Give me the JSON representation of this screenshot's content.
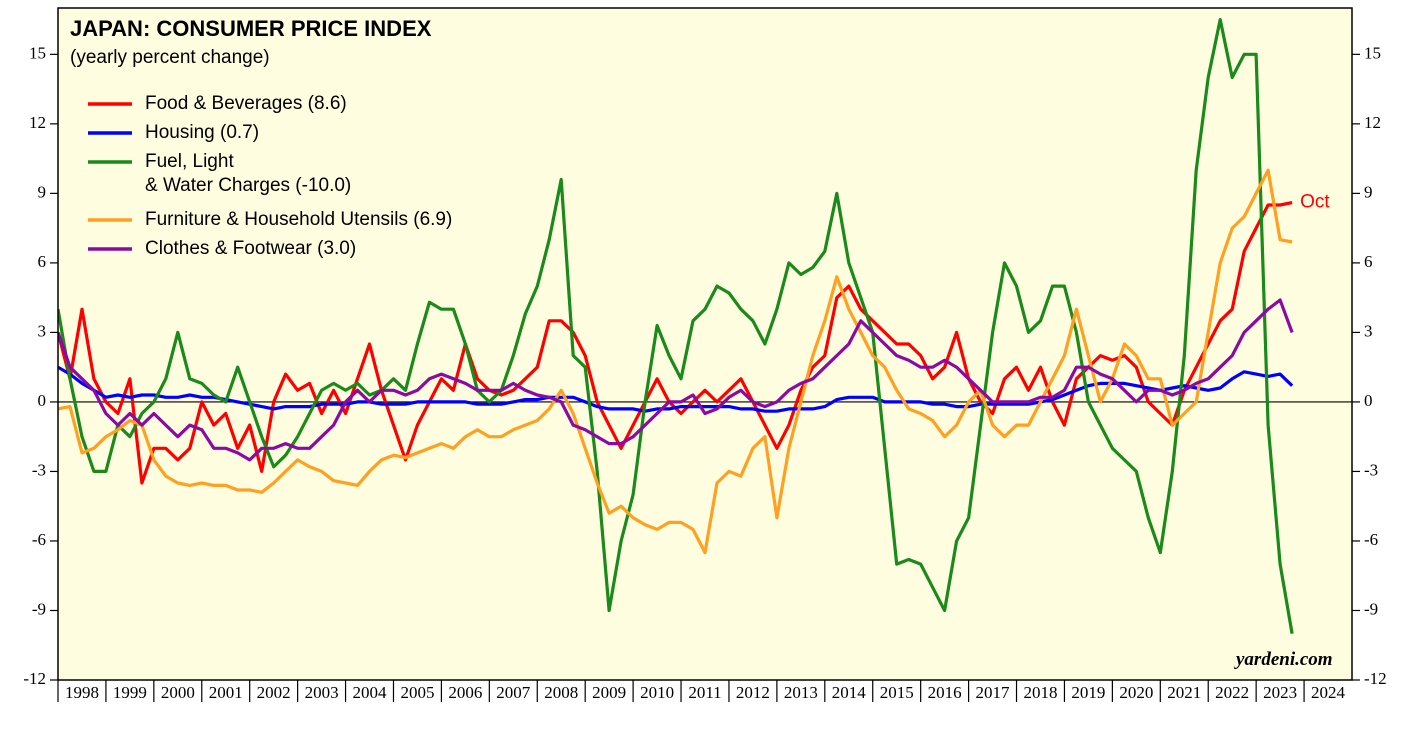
{
  "chart_data": {
    "type": "line",
    "title": "JAPAN: CONSUMER PRICE INDEX",
    "subtitle": "(yearly percent change)",
    "annotation": "Oct",
    "source": "yardeni.com",
    "legend": "top-left",
    "xlim": [
      1998,
      2025
    ],
    "xticks": [
      1998,
      1999,
      2000,
      2001,
      2002,
      2003,
      2004,
      2005,
      2006,
      2007,
      2008,
      2009,
      2010,
      2011,
      2012,
      2013,
      2014,
      2015,
      2016,
      2017,
      2018,
      2019,
      2020,
      2021,
      2022,
      2023,
      2024
    ],
    "ylim": [
      -12,
      17
    ],
    "yticks": [
      -12,
      -9,
      -6,
      -3,
      0,
      3,
      6,
      9,
      12,
      15
    ],
    "x": [
      1998,
      1998.25,
      1998.5,
      1998.75,
      1999,
      1999.25,
      1999.5,
      1999.75,
      2000,
      2000.25,
      2000.5,
      2000.75,
      2001,
      2001.25,
      2001.5,
      2001.75,
      2002,
      2002.25,
      2002.5,
      2002.75,
      2003,
      2003.25,
      2003.5,
      2003.75,
      2004,
      2004.25,
      2004.5,
      2004.75,
      2005,
      2005.25,
      2005.5,
      2005.75,
      2006,
      2006.25,
      2006.5,
      2006.75,
      2007,
      2007.25,
      2007.5,
      2007.75,
      2008,
      2008.25,
      2008.5,
      2008.75,
      2009,
      2009.25,
      2009.5,
      2009.75,
      2010,
      2010.25,
      2010.5,
      2010.75,
      2011,
      2011.25,
      2011.5,
      2011.75,
      2012,
      2012.25,
      2012.5,
      2012.75,
      2013,
      2013.25,
      2013.5,
      2013.75,
      2014,
      2014.25,
      2014.5,
      2014.75,
      2015,
      2015.25,
      2015.5,
      2015.75,
      2016,
      2016.25,
      2016.5,
      2016.75,
      2017,
      2017.25,
      2017.5,
      2017.75,
      2018,
      2018.25,
      2018.5,
      2018.75,
      2019,
      2019.25,
      2019.5,
      2019.75,
      2020,
      2020.25,
      2020.5,
      2020.75,
      2021,
      2021.25,
      2021.5,
      2021.75,
      2022,
      2022.25,
      2022.5,
      2022.75,
      2023,
      2023.25,
      2023.5,
      2023.75
    ],
    "series": [
      {
        "name": "Food & Beverages (8.6)",
        "color": "#ff0000",
        "values": [
          3,
          1,
          4,
          1,
          0,
          -0.5,
          1,
          -3.5,
          -2,
          -2,
          -2.5,
          -2,
          0,
          -1,
          -0.5,
          -2,
          -1,
          -3,
          0,
          1.2,
          0.5,
          0.8,
          -0.5,
          0.5,
          -0.5,
          1,
          2.5,
          0.5,
          -1,
          -2.5,
          -1,
          0,
          1,
          0.5,
          2.5,
          1,
          0.5,
          0.3,
          0.5,
          1,
          1.5,
          3.5,
          3.5,
          3,
          2,
          0,
          -1,
          -2,
          -1,
          0,
          1,
          0,
          -0.5,
          0,
          0.5,
          0,
          0.5,
          1,
          0,
          -1,
          -2,
          -1,
          0.5,
          1.5,
          2,
          4.5,
          5,
          4,
          3.5,
          3,
          2.5,
          2.5,
          2,
          1,
          1.5,
          3,
          1,
          0,
          -0.5,
          1,
          1.5,
          0.5,
          1.5,
          0,
          -1,
          1,
          1.5,
          2,
          1.8,
          2,
          1.5,
          0,
          -0.5,
          -1,
          0.5,
          1.5,
          2.5,
          3.5,
          4,
          6.5,
          7.5,
          8.5,
          8.5,
          8.6
        ]
      },
      {
        "name": "Housing (0.7)",
        "color": "#0000ff",
        "values": [
          1.5,
          1.2,
          0.8,
          0.5,
          0.2,
          0.3,
          0.2,
          0.3,
          0.3,
          0.2,
          0.2,
          0.3,
          0.2,
          0.2,
          0.1,
          0,
          -0.1,
          -0.2,
          -0.3,
          -0.2,
          -0.2,
          -0.2,
          -0.1,
          -0.1,
          -0.1,
          0,
          0,
          -0.1,
          -0.1,
          -0.1,
          0,
          0,
          0,
          0,
          0,
          -0.1,
          -0.1,
          -0.1,
          0,
          0.1,
          0.1,
          0.2,
          0.2,
          0.2,
          0,
          -0.2,
          -0.3,
          -0.3,
          -0.3,
          -0.4,
          -0.3,
          -0.3,
          -0.2,
          -0.2,
          -0.2,
          -0.2,
          -0.2,
          -0.3,
          -0.3,
          -0.4,
          -0.4,
          -0.3,
          -0.3,
          -0.3,
          -0.2,
          0.1,
          0.2,
          0.2,
          0.2,
          0,
          0,
          0,
          0,
          -0.1,
          -0.1,
          -0.2,
          -0.2,
          -0.1,
          -0.1,
          -0.1,
          -0.1,
          -0.1,
          0,
          0.1,
          0.3,
          0.5,
          0.7,
          0.8,
          0.8,
          0.8,
          0.7,
          0.6,
          0.5,
          0.6,
          0.7,
          0.6,
          0.5,
          0.6,
          1.0,
          1.3,
          1.2,
          1.1,
          1.2,
          0.7
        ]
      },
      {
        "name": "Fuel, Light\n& Water Charges (-10.0)",
        "color": "#1a8a1a",
        "values": [
          4,
          1,
          -1.5,
          -3,
          -3,
          -1,
          -1.5,
          -0.5,
          0,
          1,
          3,
          1,
          0.8,
          0.3,
          0,
          1.5,
          0,
          -1.5,
          -2.8,
          -2.3,
          -1.5,
          -0.5,
          0.5,
          0.8,
          0.5,
          0.8,
          0.3,
          0.5,
          1,
          0.5,
          2.5,
          4.3,
          4,
          4,
          2.5,
          0.5,
          0,
          0.5,
          2,
          3.8,
          5,
          7,
          9.6,
          2,
          1.5,
          -3,
          -9,
          -6,
          -4,
          0,
          3.3,
          2,
          1,
          3.5,
          4,
          5,
          4.7,
          4,
          3.5,
          2.5,
          4,
          6,
          5.5,
          5.8,
          6.5,
          9,
          6,
          4.5,
          3,
          -2,
          -7,
          -6.8,
          -7,
          -8,
          -9,
          -6,
          -5,
          -1,
          3,
          6,
          5,
          3,
          3.5,
          5,
          5,
          3,
          0,
          -1,
          -2,
          -2.5,
          -3,
          -5,
          -6.5,
          -3,
          2,
          10,
          14,
          16.5,
          14,
          15,
          15,
          -1,
          -7,
          -10
        ]
      },
      {
        "name": "Furniture & Household Utensils (6.9)",
        "color": "#ffa020",
        "values": [
          -0.3,
          -0.2,
          -2.2,
          -2,
          -1.5,
          -1.2,
          -0.8,
          -1,
          -2.5,
          -3.2,
          -3.5,
          -3.6,
          -3.5,
          -3.6,
          -3.6,
          -3.8,
          -3.8,
          -3.9,
          -3.5,
          -3,
          -2.5,
          -2.8,
          -3,
          -3.4,
          -3.5,
          -3.6,
          -3,
          -2.5,
          -2.3,
          -2.4,
          -2.2,
          -2,
          -1.8,
          -2,
          -1.5,
          -1.2,
          -1.5,
          -1.5,
          -1.2,
          -1,
          -0.8,
          -0.3,
          0.5,
          -0.5,
          -2,
          -3.5,
          -4.8,
          -4.5,
          -5,
          -5.3,
          -5.5,
          -5.2,
          -5.2,
          -5.5,
          -6.5,
          -3.5,
          -3,
          -3.2,
          -2,
          -1.5,
          -5,
          -2,
          0,
          2,
          3.5,
          5.4,
          4,
          3,
          2,
          1.5,
          0.5,
          -0.3,
          -0.5,
          -0.8,
          -1.5,
          -1,
          0,
          0.5,
          -1,
          -1.5,
          -1,
          -1,
          0,
          1,
          2,
          4,
          2,
          0,
          1,
          2.5,
          2,
          1,
          1,
          -1,
          -0.5,
          0,
          3,
          6,
          7.5,
          8,
          9,
          10,
          7,
          6.9
        ]
      },
      {
        "name": "Clothes & Footwear (3.0)",
        "color": "#8b0aa5",
        "values": [
          3,
          1.5,
          1,
          0.5,
          -0.5,
          -1,
          -0.5,
          -1,
          -0.5,
          -1,
          -1.5,
          -1,
          -1.2,
          -2,
          -2,
          -2.2,
          -2.5,
          -2,
          -2,
          -1.8,
          -2,
          -2,
          -1.5,
          -1,
          0,
          0.5,
          0,
          0.5,
          0.5,
          0.3,
          0.5,
          1,
          1.2,
          1,
          0.8,
          0.5,
          0.5,
          0.5,
          0.8,
          0.5,
          0.3,
          0.2,
          0,
          -1,
          -1.2,
          -1.5,
          -1.8,
          -1.8,
          -1.5,
          -1,
          -0.5,
          0,
          0,
          0.3,
          -0.5,
          -0.3,
          0.2,
          0.5,
          0,
          -0.2,
          0,
          0.5,
          0.8,
          1,
          1.5,
          2,
          2.5,
          3.5,
          3,
          2.5,
          2,
          1.8,
          1.5,
          1.5,
          1.8,
          1.5,
          1,
          0.5,
          0,
          0,
          0,
          0,
          0.2,
          0.2,
          0.5,
          1.5,
          1.5,
          1.2,
          1,
          0.5,
          0,
          0.5,
          0.5,
          0.3,
          0.5,
          0.8,
          1,
          1.5,
          2,
          3,
          3.5,
          4,
          4.4,
          3.0
        ]
      }
    ]
  }
}
